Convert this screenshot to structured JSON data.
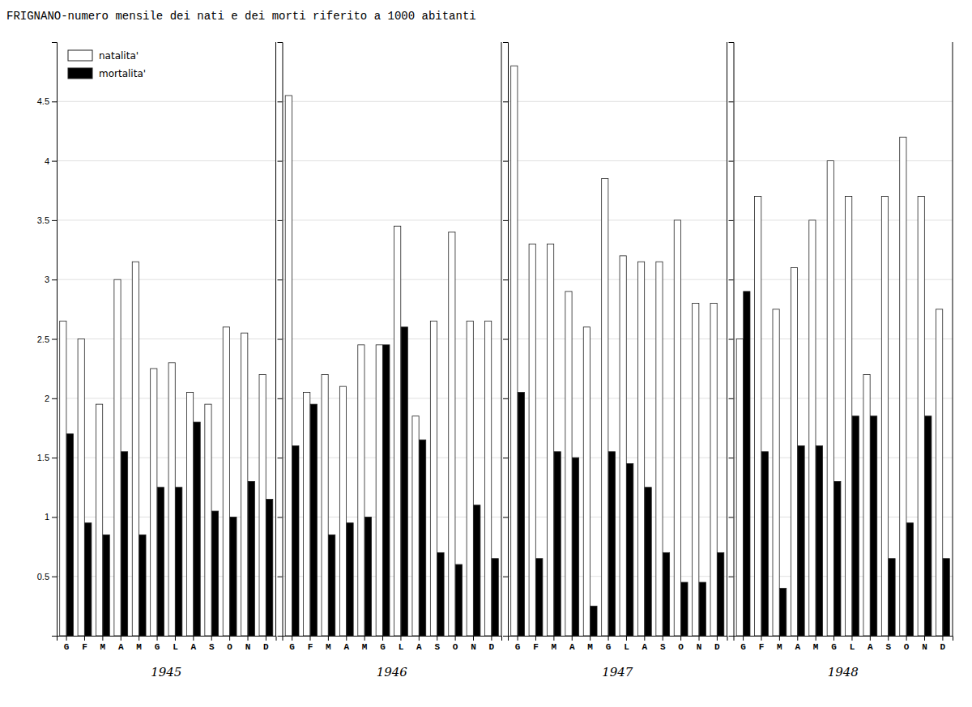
{
  "chart_data": [
    {
      "type": "bar",
      "title": "FRIGNANO-numero mensile dei nati e dei morti riferito a 1000 abitanti",
      "xlabel": "1945",
      "categories": [
        "G",
        "F",
        "M",
        "A",
        "M",
        "G",
        "L",
        "A",
        "S",
        "O",
        "N",
        "D"
      ],
      "series": [
        {
          "name": "natalita'",
          "color": "white",
          "values": [
            2.65,
            2.5,
            1.95,
            3.0,
            3.15,
            2.25,
            2.3,
            2.05,
            1.95,
            2.6,
            2.55,
            2.2
          ]
        },
        {
          "name": "mortalita'",
          "color": "black",
          "values": [
            1.7,
            0.95,
            0.85,
            1.55,
            0.85,
            1.25,
            1.25,
            1.8,
            1.05,
            1.0,
            1.3,
            1.15
          ]
        }
      ],
      "ylim": [
        0,
        5.0
      ],
      "yticks": [
        0.5,
        1,
        1.5,
        2,
        2.5,
        3,
        3.5,
        4,
        4.5
      ],
      "grid": true,
      "legend": "upper left"
    },
    {
      "type": "bar",
      "xlabel": "1946",
      "categories": [
        "G",
        "F",
        "M",
        "A",
        "M",
        "G",
        "L",
        "A",
        "S",
        "O",
        "N",
        "D"
      ],
      "series": [
        {
          "color": "white",
          "values": [
            4.55,
            2.05,
            2.2,
            2.1,
            2.45,
            2.45,
            3.45,
            1.85,
            2.65,
            3.4,
            2.65,
            2.65
          ]
        },
        {
          "color": "black",
          "values": [
            1.6,
            1.95,
            0.85,
            0.95,
            1.0,
            2.45,
            2.6,
            1.65,
            0.7,
            0.6,
            1.1,
            0.65
          ]
        }
      ],
      "ylim": [
        0,
        5.0
      ],
      "yticks": [
        0.5,
        1,
        1.5,
        2,
        2.5,
        3,
        3.5,
        4,
        4.5
      ],
      "grid": true,
      "tick_labels": "x"
    },
    {
      "type": "bar",
      "xlabel": "1947",
      "categories": [
        "G",
        "F",
        "M",
        "A",
        "M",
        "G",
        "L",
        "A",
        "S",
        "O",
        "N",
        "D"
      ],
      "series": [
        {
          "color": "white",
          "values": [
            4.8,
            3.3,
            3.3,
            2.9,
            2.6,
            3.85,
            3.2,
            3.15,
            3.15,
            3.5,
            2.8,
            2.8
          ]
        },
        {
          "color": "black",
          "values": [
            2.05,
            0.65,
            1.55,
            1.5,
            0.25,
            1.55,
            1.45,
            1.25,
            0.7,
            0.45,
            0.45,
            0.7
          ]
        }
      ],
      "ylim": [
        0,
        5.0
      ],
      "yticks": [
        0.5,
        1,
        1.5,
        2,
        2.5,
        3,
        3.5,
        4,
        4.5
      ],
      "grid": true,
      "tick_labels": "x"
    },
    {
      "type": "bar",
      "xlabel": "1948",
      "categories": [
        "G",
        "F",
        "M",
        "A",
        "M",
        "G",
        "L",
        "A",
        "S",
        "O",
        "N",
        "D"
      ],
      "series": [
        {
          "color": "white",
          "values": [
            2.5,
            3.7,
            2.75,
            3.1,
            3.5,
            4.0,
            3.7,
            2.2,
            3.7,
            4.2,
            3.7,
            2.75
          ]
        },
        {
          "color": "black",
          "values": [
            2.9,
            1.55,
            0.4,
            1.6,
            1.6,
            1.3,
            1.85,
            1.85,
            0.65,
            0.95,
            1.85,
            0.65
          ]
        }
      ],
      "ylim": [
        0,
        5.0
      ],
      "yticks": [
        0.5,
        1,
        1.5,
        2,
        2.5,
        3,
        3.5,
        4,
        4.5
      ],
      "grid": true,
      "tick_labels": "x"
    }
  ]
}
